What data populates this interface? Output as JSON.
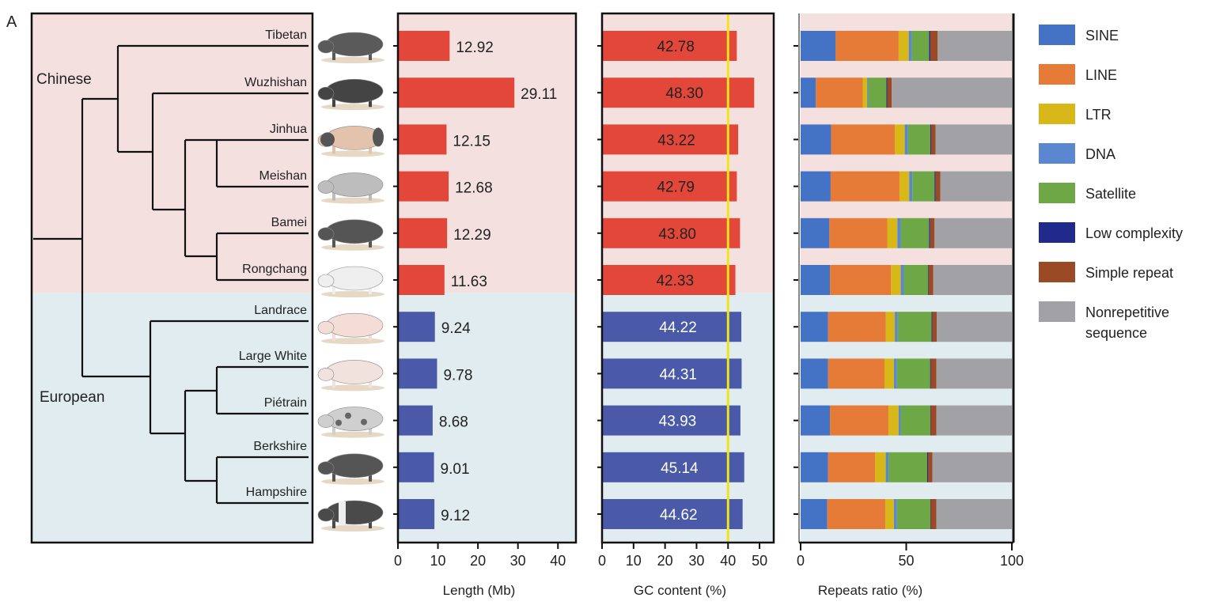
{
  "panel_label": "A",
  "groups": {
    "chinese": "Chinese",
    "european": "European"
  },
  "colors": {
    "chinese_bg": "#f4e1df",
    "european_bg": "#e0ecf0",
    "chinese_bar": "#e2473a",
    "european_bar": "#4a5aa8",
    "threshold_line": "#f2e41a"
  },
  "breeds": [
    {
      "name": "Tibetan",
      "group": "chinese",
      "pig_color": "#5a5a5a"
    },
    {
      "name": "Wuzhishan",
      "group": "chinese",
      "pig_color": "#444444"
    },
    {
      "name": "Jinhua",
      "group": "chinese",
      "pig_color": "#e3c3ab"
    },
    {
      "name": "Meishan",
      "group": "chinese",
      "pig_color": "#bdbdbd"
    },
    {
      "name": "Bamei",
      "group": "chinese",
      "pig_color": "#555555"
    },
    {
      "name": "Rongchang",
      "group": "chinese",
      "pig_color": "#efefef"
    },
    {
      "name": "Landrace",
      "group": "european",
      "pig_color": "#f3ddd6"
    },
    {
      "name": "Large White",
      "group": "european",
      "pig_color": "#f2e2de"
    },
    {
      "name": "Piétrain",
      "group": "european",
      "pig_color": "#cfcfcf"
    },
    {
      "name": "Berkshire",
      "group": "european",
      "pig_color": "#555555"
    },
    {
      "name": "Hampshire",
      "group": "european",
      "pig_color": "#4a4a4a"
    }
  ],
  "chart_data": [
    {
      "type": "bar",
      "orientation": "horizontal",
      "categories": [
        "Tibetan",
        "Wuzhishan",
        "Jinhua",
        "Meishan",
        "Bamei",
        "Rongchang",
        "Landrace",
        "Large White",
        "Piétrain",
        "Berkshire",
        "Hampshire"
      ],
      "values": [
        12.92,
        29.11,
        12.15,
        12.68,
        12.29,
        11.63,
        9.24,
        9.78,
        8.68,
        9.01,
        9.12
      ],
      "value_labels": [
        "12.92",
        "29.11",
        "12.15",
        "12.68",
        "12.29",
        "11.63",
        "9.24",
        "9.78",
        "8.68",
        "9.01",
        "9.12"
      ],
      "xlabel": "Length (Mb)",
      "xlim": [
        0,
        44
      ],
      "xticks": [
        "0",
        "10",
        "20",
        "30",
        "40"
      ]
    },
    {
      "type": "bar",
      "orientation": "horizontal",
      "categories": [
        "Tibetan",
        "Wuzhishan",
        "Jinhua",
        "Meishan",
        "Bamei",
        "Rongchang",
        "Landrace",
        "Large White",
        "Piétrain",
        "Berkshire",
        "Hampshire"
      ],
      "values": [
        42.78,
        48.3,
        43.22,
        42.79,
        43.8,
        42.33,
        44.22,
        44.31,
        43.93,
        45.14,
        44.62
      ],
      "value_labels": [
        "42.78",
        "48.30",
        "43.22",
        "42.79",
        "43.80",
        "42.33",
        "44.22",
        "44.31",
        "43.93",
        "45.14",
        "44.62"
      ],
      "xlabel": "GC content (%)",
      "xlim": [
        0,
        54
      ],
      "xticks": [
        "0",
        "10",
        "20",
        "30",
        "40",
        "50"
      ],
      "reference_line": 40
    },
    {
      "type": "bar",
      "stacked": true,
      "orientation": "horizontal",
      "categories": [
        "Tibetan",
        "Wuzhishan",
        "Jinhua",
        "Meishan",
        "Bamei",
        "Rongchang",
        "Landrace",
        "Large White",
        "Piétrain",
        "Berkshire",
        "Hampshire"
      ],
      "xlabel": "Repeats ratio (%)",
      "xlim": [
        0,
        100
      ],
      "xticks": [
        "0",
        "50",
        "100"
      ],
      "legend_position": "right",
      "series": [
        {
          "name": "SINE",
          "color": "#4472c4",
          "values": [
            16.6,
            7.2,
            14.4,
            14.2,
            13.6,
            13.9,
            13.0,
            13.0,
            13.9,
            13.0,
            12.6
          ]
        },
        {
          "name": "LINE",
          "color": "#e57b37",
          "values": [
            29.8,
            22.2,
            30.2,
            32.6,
            27.4,
            28.9,
            27.3,
            26.7,
            27.7,
            22.2,
            27.5
          ]
        },
        {
          "name": "LTR",
          "color": "#d8b818",
          "values": [
            4.8,
            2.1,
            4.7,
            4.6,
            4.8,
            4.6,
            4.3,
            4.5,
            4.8,
            5.1,
            4.1
          ]
        },
        {
          "name": "DNA",
          "color": "#5a88d0",
          "values": [
            1.5,
            0.5,
            1.5,
            1.5,
            1.6,
            1.5,
            1.4,
            1.4,
            1.0,
            1.3,
            1.4
          ]
        },
        {
          "name": "Satellite",
          "color": "#6ea846",
          "values": [
            8.1,
            8.6,
            10.6,
            10.5,
            13.4,
            11.4,
            16.0,
            15.7,
            14.0,
            18.3,
            15.8
          ]
        },
        {
          "name": "Low complexity",
          "color": "#1f2a8c",
          "values": [
            0.6,
            0.4,
            0.4,
            0.5,
            0.5,
            0.3,
            0.4,
            0.3,
            0.2,
            0.4,
            0.2
          ]
        },
        {
          "name": "Simple repeat",
          "color": "#9a4a25",
          "values": [
            3.5,
            2.1,
            2.1,
            2.2,
            2.1,
            2.2,
            2.1,
            2.7,
            2.7,
            2.1,
            2.7
          ]
        },
        {
          "name": "Nonrepetitive sequence",
          "color": "#a2a1a5",
          "values": [
            35.1,
            56.9,
            36.1,
            33.9,
            36.6,
            37.2,
            35.5,
            35.7,
            35.7,
            37.6,
            35.7
          ],
          "legend_lines": [
            "Nonrepetitive",
            "sequence"
          ]
        }
      ]
    }
  ]
}
